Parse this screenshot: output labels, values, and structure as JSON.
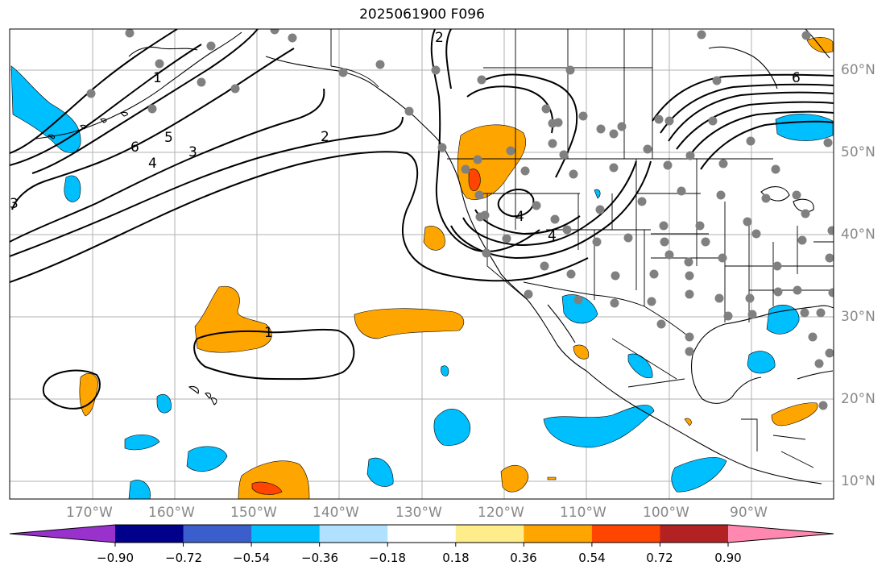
{
  "title": "2025061900 F096",
  "map": {
    "lat_labels": [
      "60°N",
      "50°N",
      "40°N",
      "30°N",
      "20°N",
      "10°N"
    ],
    "lon_labels": [
      "170°W",
      "160°W",
      "150°W",
      "140°W",
      "130°W",
      "120°W",
      "110°W",
      "100°W",
      "90°W"
    ],
    "contour_labels": [
      "1",
      "1",
      "2",
      "2",
      "3",
      "3",
      "4",
      "4",
      "4",
      "5",
      "6",
      "6"
    ],
    "colors": {
      "coast": "#000000",
      "grid": "#b0b0b0",
      "station": "#808080",
      "contour": "#000000"
    }
  },
  "colorbar": {
    "tick_labels": [
      "−0.90",
      "−0.72",
      "−0.54",
      "−0.36",
      "−0.18",
      "0.18",
      "0.36",
      "0.54",
      "0.72",
      "0.90"
    ],
    "colors": [
      "#9932cc",
      "#00008b",
      "#3a5fcd",
      "#00bfff",
      "#b0e2ff",
      "#ffffff",
      "#ffec8b",
      "#ffa500",
      "#ff4500",
      "#b22222",
      "#ff88b0"
    ]
  }
}
